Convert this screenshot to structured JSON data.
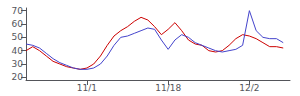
{
  "chart_data": {
    "type": "line",
    "x": [
      0,
      1,
      2,
      3,
      4,
      5,
      6,
      7,
      8,
      9,
      10,
      11,
      12,
      13,
      14,
      15,
      16,
      17,
      18,
      19,
      20,
      21,
      22,
      23,
      24,
      25,
      26,
      27,
      28,
      29,
      30,
      31,
      32,
      33,
      34,
      35,
      36,
      37,
      38
    ],
    "series": [
      {
        "color": "#cc0000",
        "values": [
          40,
          43,
          40,
          36,
          32,
          30,
          28,
          27,
          26,
          27,
          30,
          36,
          44,
          51,
          55,
          58,
          62,
          65,
          63,
          58,
          52,
          56,
          61,
          55,
          48,
          45,
          44,
          40,
          39,
          40,
          44,
          49,
          52,
          51,
          49,
          46,
          43,
          43,
          42
        ]
      },
      {
        "color": "#4444cc",
        "values": [
          45,
          44,
          42,
          38,
          34,
          31,
          29,
          27,
          26,
          26,
          27,
          30,
          36,
          44,
          50,
          51,
          53,
          55,
          57,
          56,
          48,
          41,
          48,
          52,
          50,
          46,
          44,
          42,
          40,
          39,
          40,
          41,
          44,
          70,
          55,
          50,
          49,
          49,
          46
        ]
      }
    ],
    "xlim": [
      0,
      39
    ],
    "xticks": [
      {
        "value": 9,
        "label": "11/1"
      },
      {
        "value": 21,
        "label": "11/18"
      },
      {
        "value": 33,
        "label": "12/2"
      }
    ],
    "ylim": [
      18,
      72
    ],
    "yticks": [
      20,
      30,
      40,
      50,
      60,
      70
    ],
    "grid": false
  }
}
